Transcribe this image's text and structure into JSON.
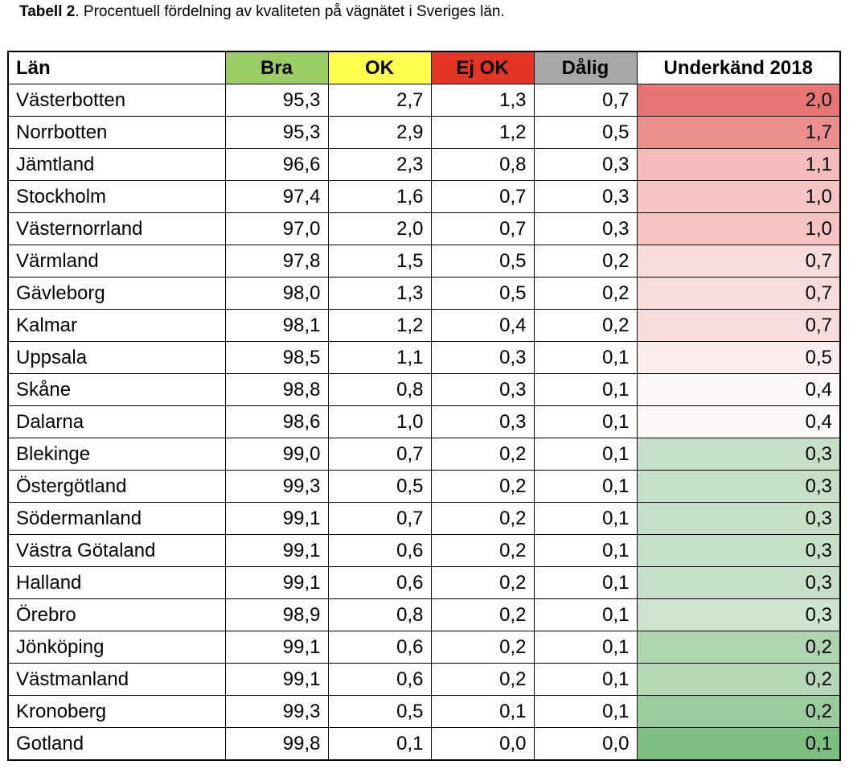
{
  "caption": {
    "label": "Tabell 2",
    "text": ". Procentuell fördelning av kvaliteten på vägnätet i Sveriges län."
  },
  "colors": {
    "header_bra": "#9ccc65",
    "header_ok": "#ffff4d",
    "header_ejok": "#e53527",
    "header_dalig": "#a8a8a8",
    "border": "#000000"
  },
  "table": {
    "headers": {
      "lan": "Län",
      "bra": "Bra",
      "ok": "OK",
      "ejok": "Ej OK",
      "dalig": "Dålig",
      "underkand": "Underkänd 2018"
    },
    "rows": [
      {
        "lan": "Västerbotten",
        "bra": "95,3",
        "ok": "2,7",
        "ejok": "1,3",
        "dalig": "0,7",
        "underkand": "2,0",
        "shade": "#e67673"
      },
      {
        "lan": "Norrbotten",
        "bra": "95,3",
        "ok": "2,9",
        "ejok": "1,2",
        "dalig": "0,5",
        "underkand": "1,7",
        "shade": "#eb908e"
      },
      {
        "lan": "Jämtland",
        "bra": "96,6",
        "ok": "2,3",
        "ejok": "0,8",
        "dalig": "0,3",
        "underkand": "1,1",
        "shade": "#f3bcbb"
      },
      {
        "lan": "Stockholm",
        "bra": "97,4",
        "ok": "1,6",
        "ejok": "0,7",
        "dalig": "0,3",
        "underkand": "1,0",
        "shade": "#f4c3c2"
      },
      {
        "lan": "Västernorrland",
        "bra": "97,0",
        "ok": "2,0",
        "ejok": "0,7",
        "dalig": "0,3",
        "underkand": "1,0",
        "shade": "#f4c3c2"
      },
      {
        "lan": "Värmland",
        "bra": "97,8",
        "ok": "1,5",
        "ejok": "0,5",
        "dalig": "0,2",
        "underkand": "0,7",
        "shade": "#f8dcdc"
      },
      {
        "lan": "Gävleborg",
        "bra": "98,0",
        "ok": "1,3",
        "ejok": "0,5",
        "dalig": "0,2",
        "underkand": "0,7",
        "shade": "#f8dcdc"
      },
      {
        "lan": "Kalmar",
        "bra": "98,1",
        "ok": "1,2",
        "ejok": "0,4",
        "dalig": "0,2",
        "underkand": "0,7",
        "shade": "#f8dcdc"
      },
      {
        "lan": "Uppsala",
        "bra": "98,5",
        "ok": "1,1",
        "ejok": "0,3",
        "dalig": "0,1",
        "underkand": "0,5",
        "shade": "#fbeded"
      },
      {
        "lan": "Skåne",
        "bra": "98,8",
        "ok": "0,8",
        "ejok": "0,3",
        "dalig": "0,1",
        "underkand": "0,4",
        "shade": "#fdf8f8"
      },
      {
        "lan": "Dalarna",
        "bra": "98,6",
        "ok": "1,0",
        "ejok": "0,3",
        "dalig": "0,1",
        "underkand": "0,4",
        "shade": "#fdf8f8"
      },
      {
        "lan": "Blekinge",
        "bra": "99,0",
        "ok": "0,7",
        "ejok": "0,2",
        "dalig": "0,1",
        "underkand": "0,3",
        "shade": "#c5e0c6"
      },
      {
        "lan": "Östergötland",
        "bra": "99,3",
        "ok": "0,5",
        "ejok": "0,2",
        "dalig": "0,1",
        "underkand": "0,3",
        "shade": "#c5e0c6"
      },
      {
        "lan": "Södermanland",
        "bra": "99,1",
        "ok": "0,7",
        "ejok": "0,2",
        "dalig": "0,1",
        "underkand": "0,3",
        "shade": "#c5e0c6"
      },
      {
        "lan": "Västra Götaland",
        "bra": "99,1",
        "ok": "0,6",
        "ejok": "0,2",
        "dalig": "0,1",
        "underkand": "0,3",
        "shade": "#c5e0c6"
      },
      {
        "lan": "Halland",
        "bra": "99,1",
        "ok": "0,6",
        "ejok": "0,2",
        "dalig": "0,1",
        "underkand": "0,3",
        "shade": "#c5e0c6"
      },
      {
        "lan": "Örebro",
        "bra": "98,9",
        "ok": "0,8",
        "ejok": "0,2",
        "dalig": "0,1",
        "underkand": "0,3",
        "shade": "#cde5ce"
      },
      {
        "lan": "Jönköping",
        "bra": "99,1",
        "ok": "0,6",
        "ejok": "0,2",
        "dalig": "0,1",
        "underkand": "0,2",
        "shade": "#aed5b0"
      },
      {
        "lan": "Västmanland",
        "bra": "99,1",
        "ok": "0,6",
        "ejok": "0,2",
        "dalig": "0,1",
        "underkand": "0,2",
        "shade": "#b4d8b6"
      },
      {
        "lan": "Kronoberg",
        "bra": "99,3",
        "ok": "0,5",
        "ejok": "0,1",
        "dalig": "0,1",
        "underkand": "0,2",
        "shade": "#9ccd9e"
      },
      {
        "lan": "Gotland",
        "bra": "99,8",
        "ok": "0,1",
        "ejok": "0,0",
        "dalig": "0,0",
        "underkand": "0,1",
        "shade": "#7dbf80"
      }
    ]
  }
}
